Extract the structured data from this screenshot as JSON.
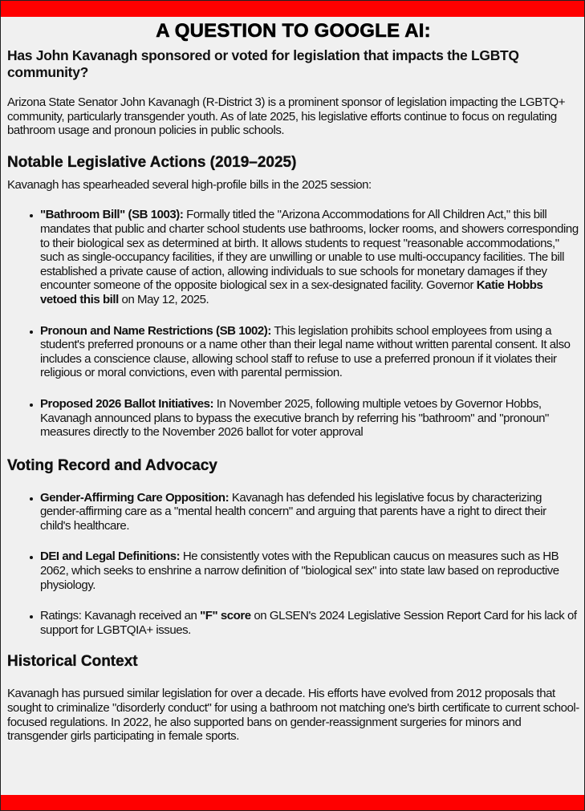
{
  "colors": {
    "accent_bar": "#ff0000",
    "background": "#f0f0f0"
  },
  "title": "A QUESTION TO GOOGLE AI:",
  "question": "Has John Kavanagh sponsored or voted for legislation that impacts the LGBTQ community?",
  "intro": "Arizona State Senator John Kavanagh (R-District 3) is a prominent sponsor of legislation impacting the LGBTQ+ community, particularly transgender youth. As of late 2025, his legislative efforts continue to focus on regulating bathroom usage and pronoun policies in public schools.",
  "section1": {
    "heading": "Notable Legislative Actions (2019–2025)",
    "lead": "Kavanagh has spearheaded several high-profile bills in the 2025 session:",
    "items": [
      {
        "bold": "\"Bathroom Bill\" (SB 1003):",
        "text": " Formally titled the \"Arizona Accommodations for All Children Act,\" this bill mandates that public and charter school students use bathrooms, locker rooms, and showers corresponding to their biological sex as determined at birth. It allows students to request \"reasonable accommodations,\" such as single-occupancy facilities, if they are unwilling or unable to use multi-occupancy facilities. The bill established a private cause of action, allowing individuals to sue schools for monetary damages if they encounter someone of the opposite biological sex in a sex-designated facility. Governor ",
        "bold2": "Katie Hobbs vetoed this bill",
        "text2": " on May 12, 2025."
      },
      {
        "bold": "Pronoun and Name Restrictions (SB 1002):",
        "text": " This legislation prohibits school employees from using a student's preferred pronouns or a name other than their legal name without written parental consent. It also includes a conscience clause, allowing school staff to refuse to use a preferred pronoun if it violates their religious or moral convictions, even with parental permission."
      },
      {
        "bold": "Proposed 2026 Ballot Initiatives:",
        "text": " In November 2025, following multiple vetoes by Governor Hobbs, Kavanagh announced plans to bypass the executive branch by referring his \"bathroom\" and \"pronoun\" measures directly to the November 2026 ballot for voter approval"
      }
    ]
  },
  "section2": {
    "heading": "Voting Record and Advocacy",
    "items": [
      {
        "bold": "Gender-Affirming Care Opposition:",
        "text": " Kavanagh has defended his legislative focus by characterizing gender-affirming care as a \"mental health concern\" and arguing that parents have a right to direct their child's healthcare."
      },
      {
        "bold": "DEI and Legal Definitions:",
        "text": " He consistently votes with the Republican caucus on measures such as HB 2062, which seeks to enshrine a narrow definition of \"biological sex\" into state law based on reproductive physiology."
      },
      {
        "pre": "Ratings: Kavanagh received an ",
        "bold": "\"F\" score",
        "text": " on GLSEN's 2024 Legislative Session Report Card for his lack of support for LGBTQIA+ issues."
      }
    ]
  },
  "section3": {
    "heading": "Historical Context",
    "text": "Kavanagh has pursued similar legislation for over a decade. His efforts have evolved from 2012 proposals that sought to criminalize \"disorderly conduct\" for using a bathroom not matching one's birth certificate to current school-focused regulations. In 2022, he also supported bans on gender-reassignment surgeries for minors and transgender girls participating in female sports."
  }
}
